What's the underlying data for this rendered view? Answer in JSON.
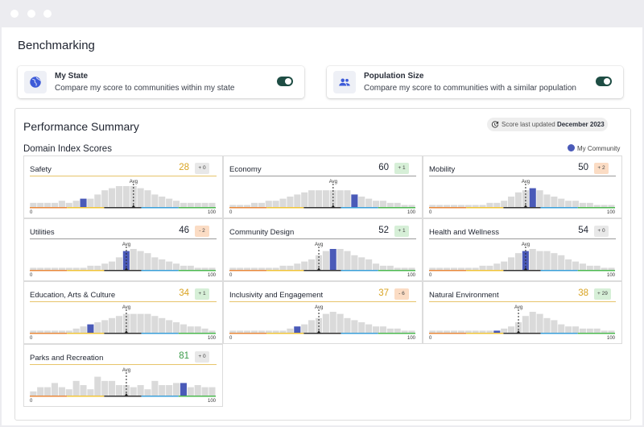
{
  "page": {
    "title": "Benchmarking"
  },
  "benchmarks": [
    {
      "title": "My State",
      "description": "Compare my score to communities within my state",
      "icon": "globe-icon",
      "enabled": true
    },
    {
      "title": "Population Size",
      "description": "Compare my score to communities with a similar population",
      "icon": "people-icon",
      "enabled": true
    }
  ],
  "summary": {
    "title": "Performance Summary",
    "updated_prefix": "Score last updated",
    "updated_date": "December 2023",
    "domain_title": "Domain Index Scores",
    "legend_label": "My Community"
  },
  "colors": {
    "score_high": "#3a9a48",
    "score_mid": "#d9a321",
    "score_normal": "#1f2430",
    "badge_green": "#d6efd7",
    "badge_orange": "#fbdcc4",
    "badge_gray": "#e8e8e8",
    "bar_gray": "#dadada",
    "bar_highlight": "#4a5ab8",
    "axis_segments": [
      "#e8893c",
      "#f0c43a",
      "#333333",
      "#3b9fd8",
      "#4cb850"
    ]
  },
  "chart_data": {
    "type": "bar",
    "axis_min_label": "0",
    "axis_max_label": "100",
    "avg_label": "Avg",
    "domains": [
      {
        "name": "Safety",
        "score": "28",
        "change": "+ 0",
        "badge": "gray",
        "score_color": "mid",
        "bars": [
          2,
          2,
          2,
          2,
          3,
          2,
          3,
          4,
          4,
          6,
          8,
          9,
          10,
          10,
          10,
          9,
          8,
          6,
          5,
          4,
          3,
          2,
          2,
          2,
          2,
          2
        ],
        "highlight": 7,
        "avg": 14
      },
      {
        "name": "Economy",
        "score": "60",
        "change": "+ 1",
        "badge": "green",
        "score_color": "normal",
        "bars": [
          1,
          1,
          1,
          2,
          2,
          3,
          3,
          4,
          5,
          6,
          7,
          8,
          8,
          8,
          8,
          8,
          8,
          6,
          5,
          4,
          3,
          3,
          2,
          2,
          1,
          1
        ],
        "highlight": 17,
        "avg": 14
      },
      {
        "name": "Mobility",
        "score": "50",
        "change": "+ 2",
        "badge": "orange",
        "score_color": "normal",
        "bars": [
          1,
          1,
          1,
          1,
          1,
          1,
          1,
          1,
          2,
          2,
          3,
          5,
          7,
          8,
          9,
          8,
          6,
          5,
          4,
          3,
          3,
          2,
          2,
          1,
          1,
          1
        ],
        "highlight": 14,
        "avg": 13
      },
      {
        "name": "Utilities",
        "score": "46",
        "change": "- 2",
        "badge": "orange",
        "score_color": "normal",
        "bars": [
          1,
          1,
          1,
          1,
          1,
          1,
          1,
          1,
          2,
          2,
          3,
          4,
          6,
          9,
          10,
          9,
          8,
          6,
          5,
          4,
          3,
          2,
          2,
          1,
          1,
          1
        ],
        "highlight": 13,
        "avg": 13
      },
      {
        "name": "Community Design",
        "score": "52",
        "change": "+ 1",
        "badge": "green",
        "score_color": "normal",
        "bars": [
          1,
          1,
          1,
          1,
          1,
          1,
          1,
          2,
          2,
          3,
          4,
          5,
          7,
          9,
          10,
          10,
          9,
          7,
          6,
          5,
          3,
          2,
          2,
          1,
          1,
          1
        ],
        "highlight": 14,
        "avg": 12
      },
      {
        "name": "Health and Wellness",
        "score": "54",
        "change": "+ 0",
        "badge": "gray",
        "score_color": "normal",
        "bars": [
          1,
          1,
          1,
          1,
          1,
          1,
          1,
          2,
          2,
          3,
          4,
          6,
          8,
          9,
          10,
          9,
          9,
          8,
          7,
          5,
          4,
          3,
          2,
          2,
          1,
          1
        ],
        "highlight": 13,
        "avg": 13
      },
      {
        "name": "Education, Arts & Culture",
        "score": "34",
        "change": "+ 1",
        "badge": "green",
        "score_color": "mid",
        "bars": [
          1,
          1,
          1,
          1,
          1,
          1,
          2,
          3,
          4,
          5,
          6,
          7,
          8,
          9,
          9,
          9,
          9,
          8,
          7,
          6,
          5,
          4,
          3,
          3,
          2,
          1
        ],
        "highlight": 8,
        "avg": 13
      },
      {
        "name": "Inclusivity and Engagement",
        "score": "37",
        "change": "- 6",
        "badge": "orange",
        "score_color": "mid",
        "bars": [
          1,
          1,
          1,
          1,
          1,
          1,
          1,
          1,
          2,
          3,
          4,
          6,
          7,
          9,
          10,
          9,
          7,
          6,
          5,
          4,
          3,
          3,
          2,
          2,
          1,
          1
        ],
        "highlight": 9,
        "avg": 12
      },
      {
        "name": "Natural Environment",
        "score": "38",
        "change": "+ 29",
        "badge": "green",
        "score_color": "mid",
        "bars": [
          1,
          1,
          1,
          1,
          1,
          1,
          1,
          1,
          1,
          1,
          2,
          3,
          5,
          8,
          10,
          9,
          7,
          6,
          4,
          3,
          3,
          2,
          2,
          2,
          1,
          1
        ],
        "highlight": 9,
        "avg": 12
      },
      {
        "name": "Parks and Recreation",
        "score": "81",
        "change": "+ 0",
        "badge": "gray",
        "score_color": "high",
        "bars": [
          2,
          4,
          4,
          6,
          4,
          3,
          7,
          5,
          3,
          9,
          7,
          7,
          5,
          5,
          4,
          5,
          3,
          7,
          5,
          5,
          6,
          6,
          4,
          5,
          4,
          4
        ],
        "highlight": 21,
        "avg": 13
      }
    ]
  }
}
